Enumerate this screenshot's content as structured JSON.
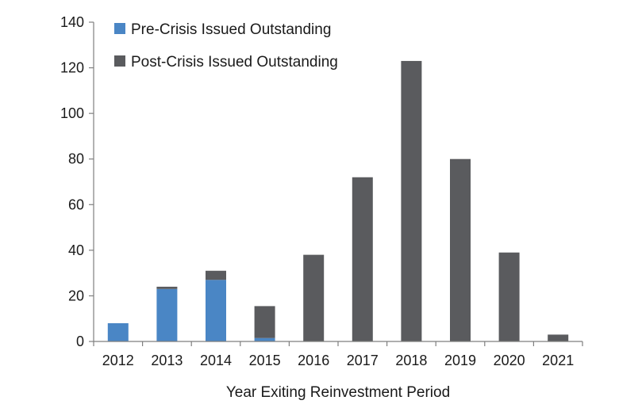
{
  "chart_data": {
    "type": "bar",
    "stacked": true,
    "title": "",
    "xlabel": "Year Exiting Reinvestment Period",
    "ylabel": "",
    "categories": [
      "2012",
      "2013",
      "2014",
      "2015",
      "2016",
      "2017",
      "2018",
      "2019",
      "2020",
      "2021"
    ],
    "series": [
      {
        "name": "Pre-Crisis Issued Outstanding",
        "color": "#4a86c5",
        "values": [
          8,
          23,
          27,
          1.5,
          0,
          0,
          0,
          0,
          0,
          0
        ]
      },
      {
        "name": "Post-Crisis Issued Outstanding",
        "color": "#5a5b5e",
        "values": [
          0,
          1,
          4,
          14,
          38,
          72,
          123,
          80,
          39,
          3
        ]
      }
    ],
    "ylim": [
      0,
      140
    ],
    "yticks": [
      0,
      20,
      40,
      60,
      80,
      100,
      120,
      140
    ],
    "grid": false,
    "legend_position": "top-left"
  }
}
